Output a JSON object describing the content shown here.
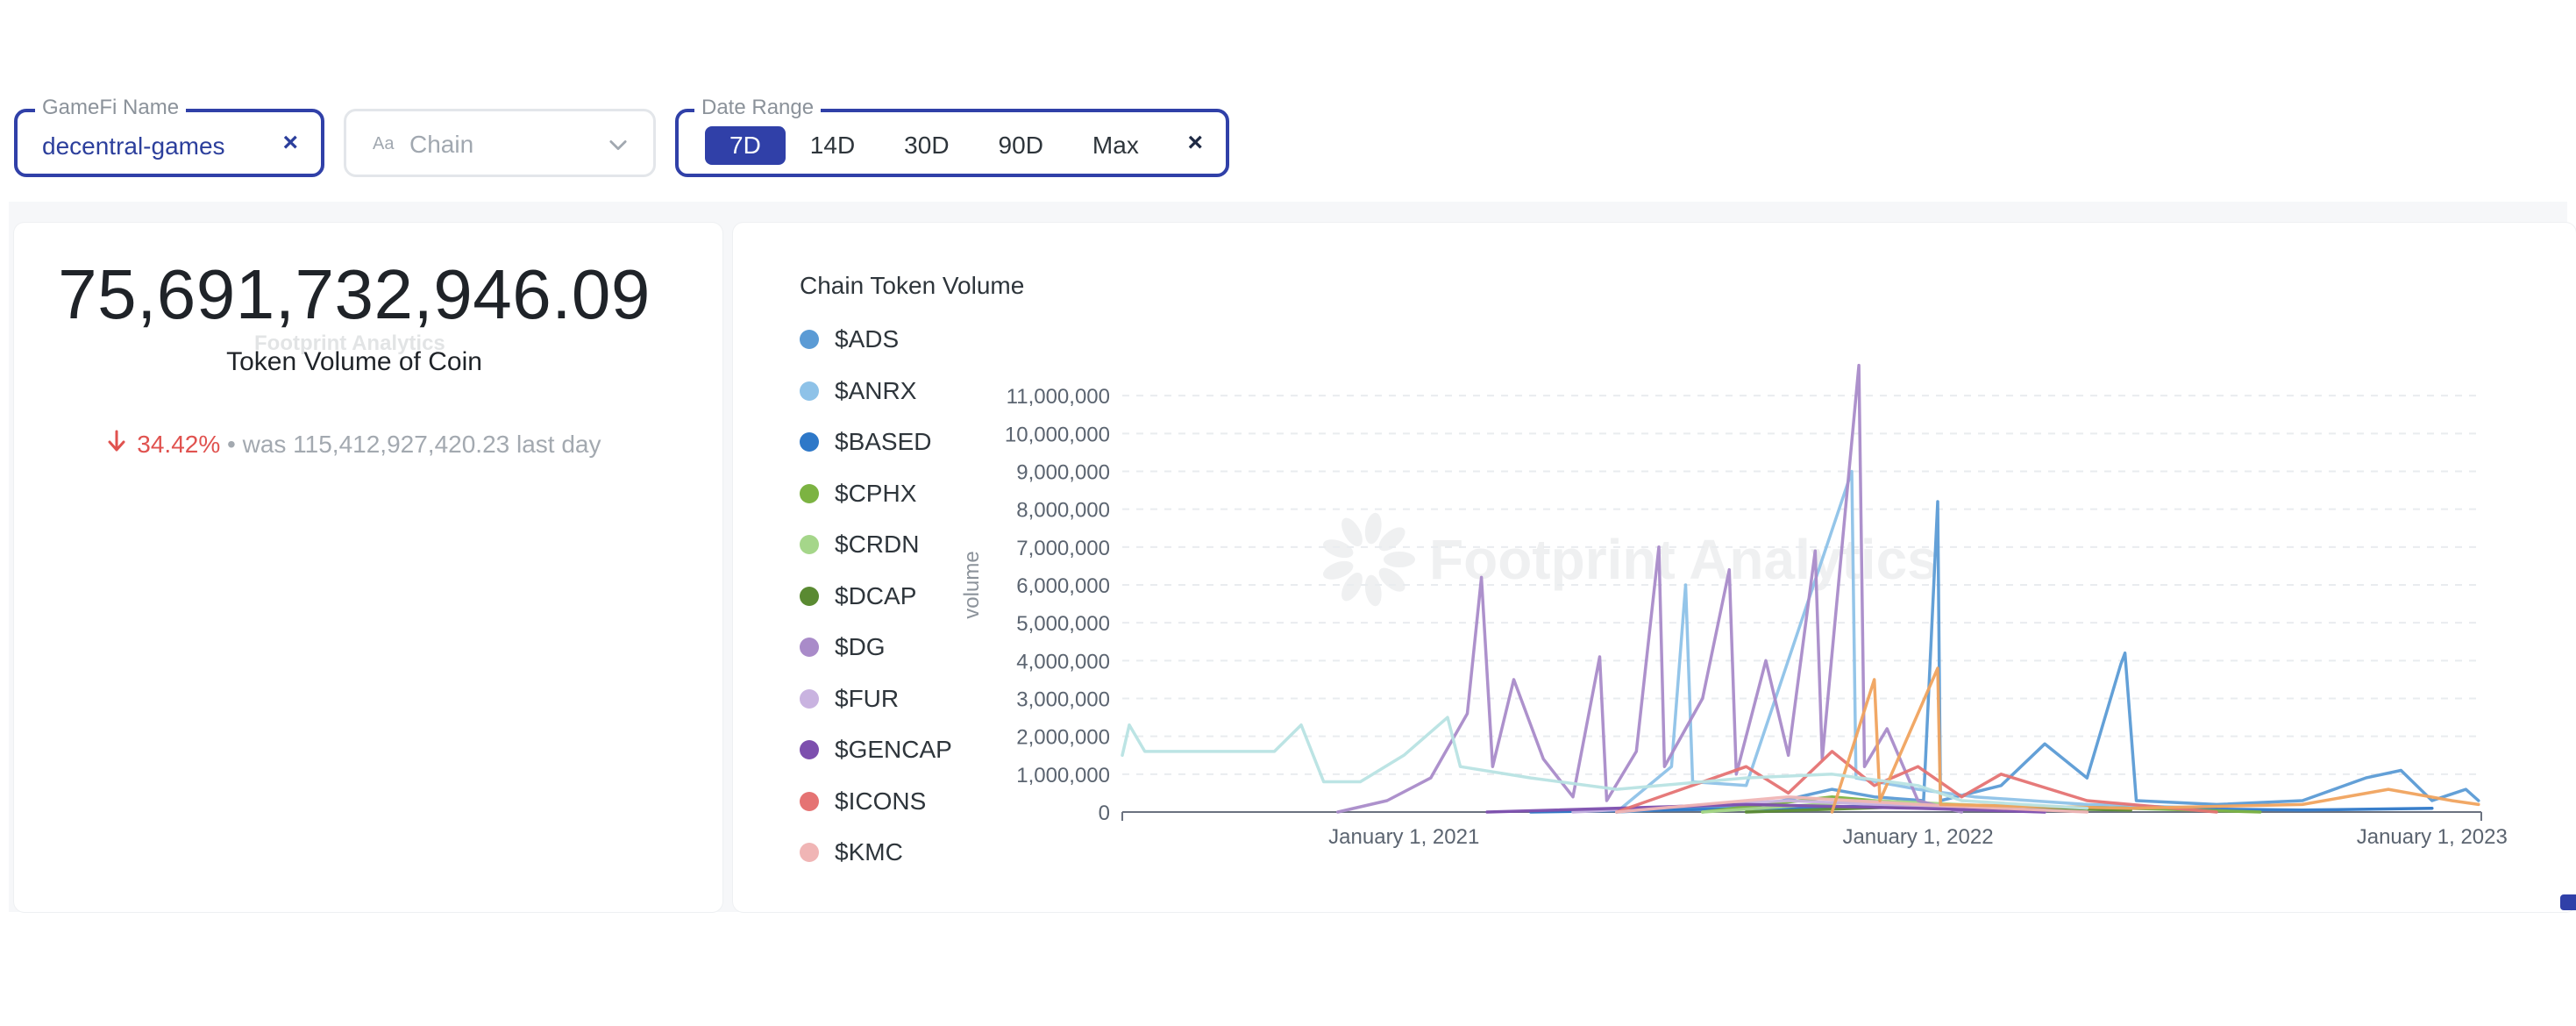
{
  "filters": {
    "gamefi_name": {
      "label": "GameFi Name",
      "value": "decentral-games",
      "clear_icon": "close-icon"
    },
    "chain": {
      "type_icon_text": "Aa",
      "placeholder": "Chain",
      "dropdown_icon": "chevron-down-icon"
    },
    "date_range": {
      "label": "Date Range",
      "options": [
        "7D",
        "14D",
        "30D",
        "90D",
        "Max"
      ],
      "selected": "7D",
      "clear_icon": "close-icon"
    }
  },
  "kpi": {
    "value": "75,691,732,946.09",
    "caption": "Token Volume of Coin",
    "change_arrow": "arrow-down-icon",
    "change_pct": "34.42%",
    "previous_text": "• was 115,412,927,420.23 last day",
    "watermark": "Footprint Analytics"
  },
  "chart": {
    "watermark": "Footprint Analytics"
  },
  "colors": {
    "accent": "#3040a8",
    "negative": "#e0524f"
  },
  "chart_data": {
    "type": "line",
    "title": "Chain Token Volume",
    "ylabel": "volume",
    "xlabel": "",
    "ylim": [
      0,
      12000000
    ],
    "yticks": [
      0,
      1000000,
      2000000,
      3000000,
      4000000,
      5000000,
      6000000,
      7000000,
      8000000,
      9000000,
      10000000,
      11000000
    ],
    "ytick_labels": [
      "0",
      "1,000,000",
      "2,000,000",
      "3,000,000",
      "4,000,000",
      "5,000,000",
      "6,000,000",
      "7,000,000",
      "8,000,000",
      "9,000,000",
      "10,000,000",
      "11,000,000"
    ],
    "xlim": [
      "2020-06-15",
      "2023-02-05"
    ],
    "xticks": [
      "2021-01-01",
      "2022-01-01",
      "2023-01-01"
    ],
    "xtick_labels": [
      "January 1, 2021",
      "January 1, 2022",
      "January 1, 2023"
    ],
    "grid": true,
    "legend_position": "left",
    "series": [
      {
        "name": "$ADS",
        "color": "#5b9bd5",
        "points": [
          [
            "2021-06-01",
            0
          ],
          [
            "2021-09-15",
            200000
          ],
          [
            "2021-11-01",
            600000
          ],
          [
            "2021-12-01",
            400000
          ],
          [
            "2022-01-05",
            300000
          ],
          [
            "2022-01-15",
            8200000
          ],
          [
            "2022-01-17",
            300000
          ],
          [
            "2022-03-01",
            700000
          ],
          [
            "2022-04-01",
            1800000
          ],
          [
            "2022-05-01",
            900000
          ],
          [
            "2022-05-25",
            3900000
          ],
          [
            "2022-05-28",
            4200000
          ],
          [
            "2022-06-05",
            300000
          ],
          [
            "2022-08-01",
            200000
          ],
          [
            "2022-10-01",
            300000
          ],
          [
            "2022-11-15",
            900000
          ],
          [
            "2022-12-10",
            1100000
          ],
          [
            "2023-01-01",
            300000
          ],
          [
            "2023-01-25",
            600000
          ],
          [
            "2023-02-03",
            300000
          ]
        ]
      },
      {
        "name": "$ANRX",
        "color": "#8ec2e8",
        "points": [
          [
            "2021-06-01",
            0
          ],
          [
            "2021-07-10",
            1200000
          ],
          [
            "2021-07-20",
            6000000
          ],
          [
            "2021-07-25",
            800000
          ],
          [
            "2021-09-01",
            700000
          ],
          [
            "2021-11-15",
            9000000
          ],
          [
            "2021-11-18",
            900000
          ],
          [
            "2022-01-01",
            600000
          ],
          [
            "2022-02-10",
            400000
          ],
          [
            "2022-05-01",
            200000
          ],
          [
            "2022-08-01",
            100000
          ]
        ]
      },
      {
        "name": "$BASED",
        "color": "#2e78c8",
        "points": [
          [
            "2021-04-01",
            0
          ],
          [
            "2021-10-01",
            100000
          ],
          [
            "2022-01-01",
            200000
          ],
          [
            "2022-06-01",
            100000
          ],
          [
            "2022-10-01",
            50000
          ],
          [
            "2023-01-01",
            100000
          ]
        ]
      },
      {
        "name": "$CPHX",
        "color": "#7cb342",
        "points": [
          [
            "2021-08-01",
            0
          ],
          [
            "2021-11-01",
            400000
          ],
          [
            "2022-01-01",
            200000
          ],
          [
            "2022-06-01",
            100000
          ],
          [
            "2022-09-01",
            0
          ]
        ]
      },
      {
        "name": "$CRDN",
        "color": "#a5d68a",
        "points": [
          [
            "2021-08-01",
            0
          ],
          [
            "2021-12-01",
            300000
          ],
          [
            "2022-03-01",
            150000
          ],
          [
            "2022-06-01",
            50000
          ]
        ]
      },
      {
        "name": "$DCAP",
        "color": "#5a8a32",
        "points": [
          [
            "2021-09-01",
            0
          ],
          [
            "2022-01-01",
            150000
          ],
          [
            "2022-06-01",
            50000
          ]
        ]
      },
      {
        "name": "$DG",
        "color": "#a98bc9",
        "points": [
          [
            "2020-11-15",
            0
          ],
          [
            "2020-12-20",
            300000
          ],
          [
            "2021-01-20",
            900000
          ],
          [
            "2021-02-15",
            2600000
          ],
          [
            "2021-02-25",
            6200000
          ],
          [
            "2021-03-05",
            1200000
          ],
          [
            "2021-03-20",
            3500000
          ],
          [
            "2021-04-10",
            1400000
          ],
          [
            "2021-05-01",
            400000
          ],
          [
            "2021-05-20",
            4100000
          ],
          [
            "2021-05-25",
            300000
          ],
          [
            "2021-06-15",
            1600000
          ],
          [
            "2021-07-01",
            7000000
          ],
          [
            "2021-07-05",
            1200000
          ],
          [
            "2021-08-01",
            3000000
          ],
          [
            "2021-08-20",
            6400000
          ],
          [
            "2021-08-25",
            1000000
          ],
          [
            "2021-09-15",
            4000000
          ],
          [
            "2021-10-01",
            1500000
          ],
          [
            "2021-10-20",
            6900000
          ],
          [
            "2021-10-25",
            1400000
          ],
          [
            "2021-11-20",
            11800000
          ],
          [
            "2021-11-24",
            1200000
          ],
          [
            "2021-12-10",
            2200000
          ],
          [
            "2022-01-01",
            300000
          ],
          [
            "2022-02-01",
            0
          ]
        ]
      },
      {
        "name": "$FUR",
        "color": "#c9b3e0",
        "points": [
          [
            "2021-05-01",
            0
          ],
          [
            "2021-10-01",
            300000
          ],
          [
            "2022-01-01",
            150000
          ],
          [
            "2022-04-01",
            0
          ]
        ]
      },
      {
        "name": "$GENCAP",
        "color": "#7d4fae",
        "points": [
          [
            "2021-03-01",
            0
          ],
          [
            "2021-09-01",
            200000
          ],
          [
            "2022-01-01",
            100000
          ],
          [
            "2022-04-01",
            0
          ]
        ]
      },
      {
        "name": "$ICONS",
        "color": "#e57373",
        "points": [
          [
            "2021-06-01",
            0
          ],
          [
            "2021-09-01",
            1200000
          ],
          [
            "2021-10-01",
            500000
          ],
          [
            "2021-11-01",
            1600000
          ],
          [
            "2021-12-01",
            700000
          ],
          [
            "2022-01-01",
            1200000
          ],
          [
            "2022-02-01",
            400000
          ],
          [
            "2022-03-01",
            1000000
          ],
          [
            "2022-05-01",
            300000
          ],
          [
            "2022-08-01",
            0
          ]
        ]
      },
      {
        "name": "$KMC",
        "color": "#f0b5b5",
        "points": [
          [
            "2021-06-01",
            0
          ],
          [
            "2021-10-01",
            400000
          ],
          [
            "2022-01-01",
            200000
          ],
          [
            "2022-05-01",
            0
          ]
        ]
      },
      {
        "name": "",
        "color": "#f0a35e",
        "points": [
          [
            "2021-11-01",
            0
          ],
          [
            "2021-12-01",
            3500000
          ],
          [
            "2021-12-05",
            300000
          ],
          [
            "2022-01-15",
            3800000
          ],
          [
            "2022-01-17",
            200000
          ],
          [
            "2022-06-01",
            100000
          ],
          [
            "2022-10-01",
            200000
          ],
          [
            "2022-12-01",
            600000
          ],
          [
            "2023-01-15",
            300000
          ],
          [
            "2023-02-03",
            200000
          ]
        ]
      },
      {
        "name": "",
        "color": "#b8e3e3",
        "points": [
          [
            "2020-06-15",
            1500000
          ],
          [
            "2020-06-20",
            2300000
          ],
          [
            "2020-07-01",
            1600000
          ],
          [
            "2020-10-01",
            1600000
          ],
          [
            "2020-10-20",
            2300000
          ],
          [
            "2020-11-05",
            800000
          ],
          [
            "2020-12-01",
            800000
          ],
          [
            "2021-01-01",
            1500000
          ],
          [
            "2021-02-01",
            2500000
          ],
          [
            "2021-02-10",
            1200000
          ],
          [
            "2021-04-01",
            900000
          ],
          [
            "2021-06-01",
            600000
          ],
          [
            "2021-09-01",
            900000
          ],
          [
            "2021-11-01",
            1000000
          ],
          [
            "2022-01-01",
            700000
          ],
          [
            "2022-02-01",
            300000
          ],
          [
            "2022-05-01",
            100000
          ]
        ]
      }
    ]
  }
}
